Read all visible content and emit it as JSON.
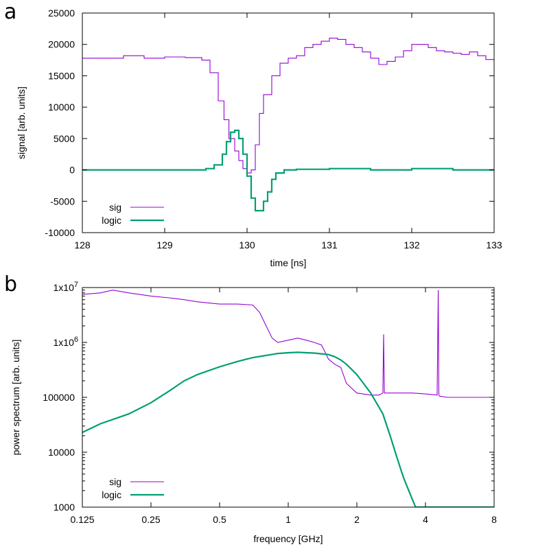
{
  "colors": {
    "sig": "#9400d3",
    "logic": "#009e73"
  },
  "chart_data": [
    {
      "panel_label": "a",
      "type": "line",
      "xlabel": "time [ns]",
      "ylabel": "signal [arb. units]",
      "xlim": [
        128,
        133
      ],
      "ylim": [
        -10000,
        25000
      ],
      "xticks": [
        128,
        129,
        130,
        131,
        132,
        133
      ],
      "xtick_labels": [
        "128",
        "129",
        "130",
        "131",
        "132",
        "133"
      ],
      "yticks": [
        -10000,
        -5000,
        0,
        5000,
        10000,
        15000,
        20000,
        25000
      ],
      "ytick_labels": [
        "-10000",
        "-5000",
        "0",
        "5000",
        "10000",
        "15000",
        "20000",
        "25000"
      ],
      "legend": "bottom-left",
      "series": [
        {
          "name": "sig",
          "x": [
            128.0,
            128.25,
            128.5,
            128.75,
            129.0,
            129.25,
            129.45,
            129.55,
            129.65,
            129.72,
            129.78,
            129.85,
            129.9,
            129.95,
            130.0,
            130.05,
            130.1,
            130.15,
            130.2,
            130.3,
            130.4,
            130.5,
            130.6,
            130.7,
            130.8,
            130.9,
            131.0,
            131.1,
            131.2,
            131.3,
            131.4,
            131.5,
            131.6,
            131.7,
            131.8,
            131.9,
            132.0,
            132.1,
            132.2,
            132.3,
            132.4,
            132.5,
            132.6,
            132.7,
            132.8,
            132.9,
            133.0
          ],
          "y": [
            17800,
            17800,
            18200,
            17800,
            18000,
            17900,
            17500,
            15500,
            11000,
            8000,
            5000,
            3000,
            1500,
            200,
            -500,
            0,
            4000,
            9000,
            12000,
            15000,
            17000,
            17800,
            18200,
            19500,
            20000,
            20500,
            21000,
            20800,
            20000,
            19500,
            18800,
            17800,
            16800,
            17300,
            18000,
            19000,
            20000,
            20000,
            19500,
            19000,
            18800,
            18600,
            18400,
            18800,
            18200,
            17600,
            17400
          ]
        },
        {
          "name": "logic",
          "x": [
            128.0,
            129.0,
            129.3,
            129.5,
            129.6,
            129.7,
            129.75,
            129.8,
            129.85,
            129.9,
            129.95,
            130.0,
            130.05,
            130.1,
            130.15,
            130.2,
            130.25,
            130.3,
            130.35,
            130.45,
            130.6,
            131.0,
            131.5,
            132.0,
            132.5,
            133.0
          ],
          "y": [
            0,
            0,
            0,
            200,
            800,
            2500,
            4500,
            6000,
            6300,
            5000,
            2500,
            -1000,
            -4500,
            -6500,
            -6500,
            -5000,
            -3500,
            -1500,
            -500,
            0,
            100,
            200,
            0,
            200,
            0,
            0
          ]
        }
      ]
    },
    {
      "panel_label": "b",
      "type": "line",
      "xlabel": "frequency [GHz]",
      "ylabel": "power spectrum [arb. units]",
      "xscale": "log2",
      "yscale": "log10",
      "xlim": [
        0.125,
        8
      ],
      "ylim": [
        1000,
        10000000
      ],
      "xticks": [
        0.125,
        0.25,
        0.5,
        1,
        2,
        4,
        8
      ],
      "xtick_labels": [
        "0.125",
        "0.25",
        "0.5",
        "1",
        "2",
        "4",
        "8"
      ],
      "yticks": [
        1000,
        10000,
        100000,
        1000000,
        10000000
      ],
      "ytick_labels": [
        "1000",
        "10000",
        "100000",
        "1x10",
        "1x10"
      ],
      "ytick_exponents": [
        "",
        "",
        "",
        "6",
        "7"
      ],
      "legend": "bottom-left",
      "series": [
        {
          "name": "sig",
          "x": [
            0.125,
            0.15,
            0.17,
            0.2,
            0.25,
            0.3,
            0.35,
            0.4,
            0.5,
            0.6,
            0.7,
            0.75,
            0.8,
            0.85,
            0.9,
            1.0,
            1.1,
            1.2,
            1.3,
            1.4,
            1.5,
            1.6,
            1.7,
            1.8,
            2.0,
            2.3,
            2.5,
            2.6,
            2.62,
            2.64,
            2.7,
            3.0,
            3.5,
            4.0,
            4.5,
            4.55,
            4.58,
            4.62,
            5.0,
            6.0,
            7.0,
            8.0
          ],
          "y": [
            7500000,
            8000000,
            9000000,
            8000000,
            7000000,
            6500000,
            6000000,
            5500000,
            5000000,
            5000000,
            4800000,
            3500000,
            2000000,
            1200000,
            1000000,
            1100000,
            1200000,
            1100000,
            1000000,
            900000,
            500000,
            400000,
            350000,
            180000,
            120000,
            110000,
            110000,
            120000,
            1400000,
            120000,
            120000,
            120000,
            120000,
            115000,
            110000,
            9000000,
            110000,
            105000,
            100000,
            100000,
            100000,
            100000
          ]
        },
        {
          "name": "logic",
          "x": [
            0.125,
            0.15,
            0.2,
            0.25,
            0.3,
            0.35,
            0.4,
            0.5,
            0.6,
            0.7,
            0.8,
            0.9,
            1.0,
            1.1,
            1.2,
            1.3,
            1.4,
            1.5,
            1.6,
            1.7,
            1.8,
            2.0,
            2.3,
            2.6,
            2.8,
            3.0,
            3.2,
            3.5,
            3.62,
            3.65,
            4.0,
            5.0,
            6.0,
            7.0,
            8.0
          ],
          "y": [
            23000,
            33000,
            50000,
            80000,
            130000,
            200000,
            260000,
            360000,
            450000,
            530000,
            580000,
            630000,
            650000,
            660000,
            650000,
            640000,
            620000,
            600000,
            550000,
            480000,
            400000,
            260000,
            120000,
            50000,
            20000,
            8000,
            3500,
            1400,
            1000,
            1000,
            1000,
            1000,
            1000,
            1000,
            1000
          ]
        }
      ]
    }
  ]
}
